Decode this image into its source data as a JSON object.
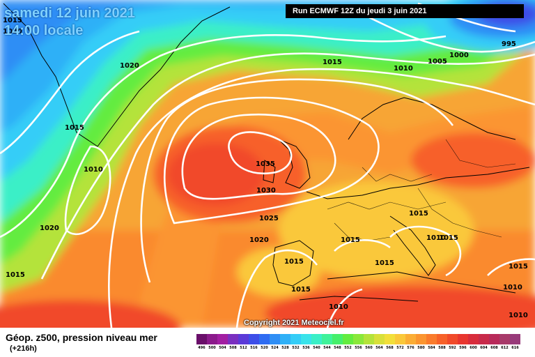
{
  "header": {
    "date_line1": "samedi 12 juin 2021",
    "date_line2": "14:00 locale",
    "run_info": "Run ECMWF 12Z du jeudi 3 juin 2021"
  },
  "copyright": "Copyright 2021 Meteociel.fr",
  "legend": {
    "title": "Géop. z500, pression niveau mer",
    "subtitle": "(+216h)",
    "scale_colors": [
      "#2a0a2a",
      "#4b0f4b",
      "#6a0f6a",
      "#8b1a8b",
      "#a21ea2",
      "#7a2fc0",
      "#5b3ad8",
      "#3d4ee8",
      "#2f6cf2",
      "#2f8ef5",
      "#2fb0f7",
      "#34cdf7",
      "#3ae3ea",
      "#3aefc7",
      "#3ff29a",
      "#45ef6b",
      "#63ec3f",
      "#8ae83a",
      "#b4e33a",
      "#d8e03a",
      "#f2df3a",
      "#fac83a",
      "#fbad35",
      "#fb9530",
      "#fa7b2c",
      "#f76129",
      "#f14a2a",
      "#e8362f",
      "#d82c3c",
      "#c82a4a",
      "#b82a5a",
      "#a83a6a",
      "#983a7a",
      "#8a4a8a",
      "#6a3a6a",
      "#000000"
    ],
    "scale_labels": [
      "496",
      "500",
      "504",
      "508",
      "512",
      "516",
      "520",
      "524",
      "528",
      "532",
      "536",
      "540",
      "544",
      "548",
      "552",
      "556",
      "560",
      "564",
      "568",
      "572",
      "576",
      "580",
      "584",
      "588",
      "592",
      "596",
      "600",
      "604",
      "608",
      "612",
      "616"
    ]
  },
  "isobar_labels": [
    "1015",
    "1020",
    "1015",
    "1010",
    "1020",
    "1015",
    "1015",
    "1010",
    "1005",
    "1000",
    "995",
    "1035",
    "1030",
    "1025",
    "1020",
    "1015",
    "1015",
    "1015",
    "1015",
    "1010",
    "1015",
    "1015",
    "1010",
    "1010",
    "1010",
    "1015",
    "1020"
  ]
}
